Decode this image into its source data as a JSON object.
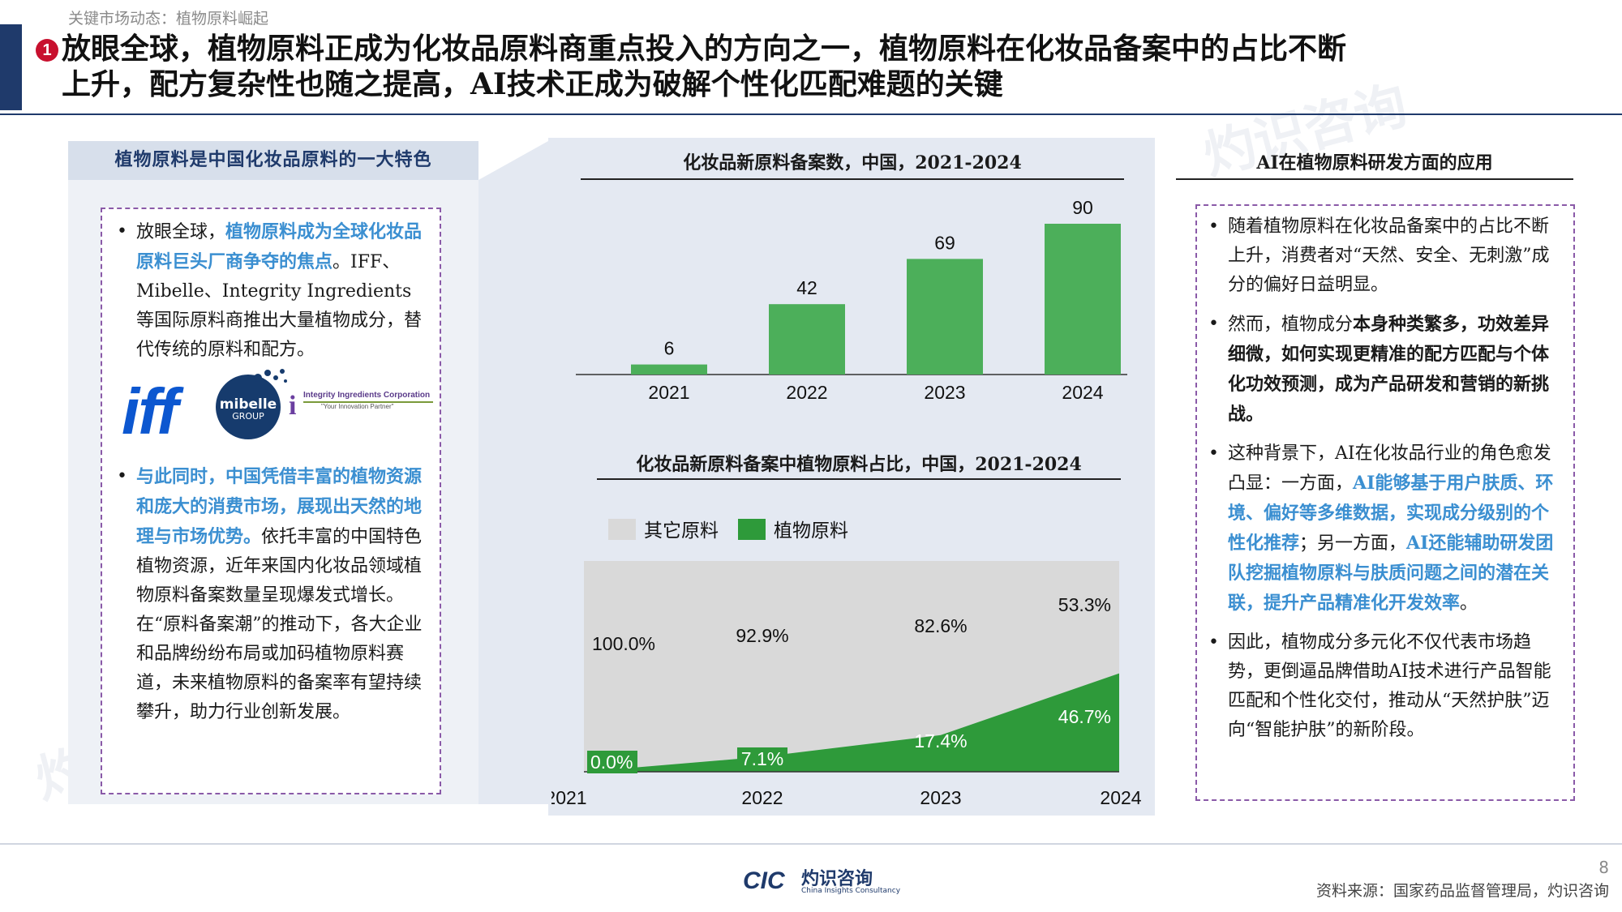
{
  "header_tag": "关键市场动态：植物原料崛起",
  "title": {
    "badge": "1",
    "line1": "放眼全球，植物原料正成为化妆品原料商重点投入的方向之一，植物原料在化妆品备案中的占比不断",
    "line2": "上升，配方复杂性也随之提高，AI技术正成为破解个性化匹配难题的关键"
  },
  "left_panel": {
    "heading": "植物原料是中国化妆品原料的一大特色",
    "bullet1": {
      "p1": "放眼全球，",
      "hl": "植物原料成为全球化妆品原料巨头厂商争夺的焦点",
      "p2": "。IFF、Mibelle、Integrity Ingredients等国际原料商推出大量植物成分，替代传统的原料和配方。"
    },
    "logos": {
      "iff": "iff",
      "mibelle_name": "mibelle",
      "mibelle_sub": "GROUP",
      "integrity_name": "Integrity Ingredients Corporation",
      "integrity_tag": "\"Your Innovation Partner\""
    },
    "bullet2": {
      "hl": "与此同时，中国凭借丰富的植物资源和庞大的消费市场，展现出天然的地理与市场优势。",
      "p": "依托丰富的中国特色植物资源，近年来国内化妆品领域植物原料备案数量呈现爆发式增长。在“原料备案潮”的推动下，各大企业和品牌纷纷布局或加码植物原料赛道，未来植物原料的备案率有望持续攀升，助力行业创新发展。"
    }
  },
  "chart_data": [
    {
      "type": "bar",
      "title": "化妆品新原料备案数，中国，2021-2024",
      "categories": [
        "2021",
        "2022",
        "2023",
        "2024"
      ],
      "values": [
        6,
        42,
        69,
        90
      ],
      "color": "#4caf5a"
    },
    {
      "type": "area",
      "title": "化妆品新原料备案中植物原料占比，中国，2021-2024",
      "categories": [
        "2021",
        "2022",
        "2023",
        "2024"
      ],
      "series": [
        {
          "name": "其它原料",
          "values": [
            100.0,
            92.9,
            82.6,
            53.3
          ],
          "labels": [
            "100.0%",
            "92.9%",
            "82.6%",
            "53.3%"
          ],
          "color": "#d9d9d9"
        },
        {
          "name": "植物原料",
          "values": [
            0.0,
            7.1,
            17.4,
            46.7
          ],
          "labels": [
            "0.0%",
            "7.1%",
            "17.4%",
            "46.7%"
          ],
          "color": "#2e9a3a"
        }
      ],
      "ylim": [
        0,
        100
      ],
      "legend": "top-left"
    }
  ],
  "right_panel": {
    "heading": "AI在植物原料研发方面的应用",
    "b1": "随着植物原料在化妆品备案中的占比不断上升，消费者对“天然、安全、无刺激”成分的偏好日益明显。",
    "b2_p": "然而，植物成分",
    "b2_bd": "本身种类繁多，功效差异细微，如何实现更精准的配方匹配与个体化功效预测，成为产品研发和营销的新挑战。",
    "b3_p1": "这种背景下，AI在化妆品行业的角色愈发凸显：一方面，",
    "b3_hl1": "AI能够基于用户肤质、环境、偏好等多维数据，实现成分级别的个性化推荐",
    "b3_p2": "；另一方面，",
    "b3_hl2": "AI还能辅助研发团队挖掘植物原料与肤质问题之间的潜在关联，提升产品精准化开发效率",
    "b3_p3": "。",
    "b4": "因此，植物成分多元化不仅代表市场趋势，更倒逼品牌借助AI技术进行产品智能匹配和个性化交付，推动从“天然护肤”迈向“智能护肤”的新阶段。"
  },
  "footer": {
    "page": "8",
    "source": "资料来源：国家药品监督管理局，灼识咨询",
    "logo_mark": "CIC",
    "logo_cn": "灼识咨询",
    "logo_en": "China Insights Consultancy"
  },
  "watermark": {
    "cn": "灼识咨询",
    "en": "China Insights Consultancy",
    "mark": "CIC"
  }
}
